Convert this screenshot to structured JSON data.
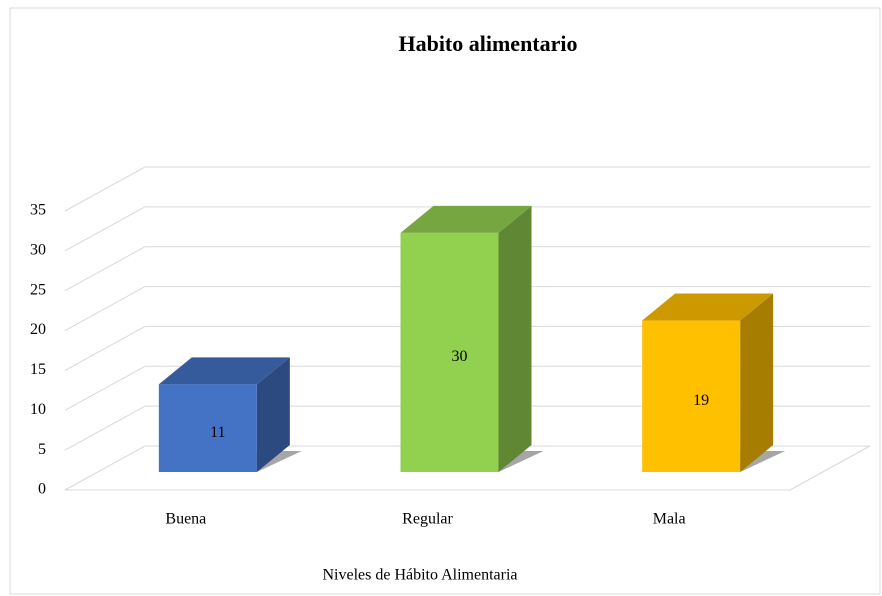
{
  "chart_data": {
    "type": "bar3d",
    "title": "Habito alimentario",
    "x_label": "Niveles de Hábito Alimentaria",
    "categories": [
      "Buena",
      "Regular",
      "Mala"
    ],
    "values": [
      11,
      30,
      19
    ],
    "colors": [
      "#4472c4",
      "#92d050",
      "#ffc000"
    ],
    "ylim": [
      0,
      35
    ],
    "yticks": [
      0,
      5,
      10,
      15,
      20,
      25,
      30,
      35
    ],
    "grid": true
  }
}
